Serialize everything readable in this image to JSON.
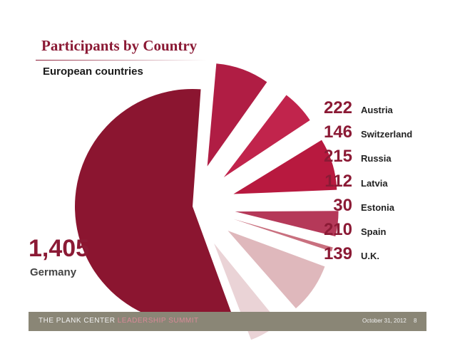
{
  "slide": {
    "title": "Participants by Country",
    "subtitle": "European countries"
  },
  "chart_data": {
    "type": "pie",
    "categories": [
      "Germany",
      "Austria",
      "Switzerland",
      "Russia",
      "Latvia",
      "Estonia",
      "Spain",
      "U.K."
    ],
    "values": [
      1405,
      222,
      146,
      215,
      112,
      30,
      210,
      139
    ],
    "value_labels": [
      "1,405",
      "222",
      "146",
      "215",
      "112",
      "30",
      "210",
      "139"
    ],
    "colors": [
      "#8b1530",
      "#b01d44",
      "#c1244c",
      "#b8193f",
      "#b53959",
      "#c9707f",
      "#dfb8bc",
      "#ead3d6"
    ]
  },
  "footer": {
    "org_prefix": "THE PLANK CENTER",
    "org_suffix": "LEADERSHIP SUMMIT",
    "date": "October 31, 2012",
    "page": "8"
  }
}
